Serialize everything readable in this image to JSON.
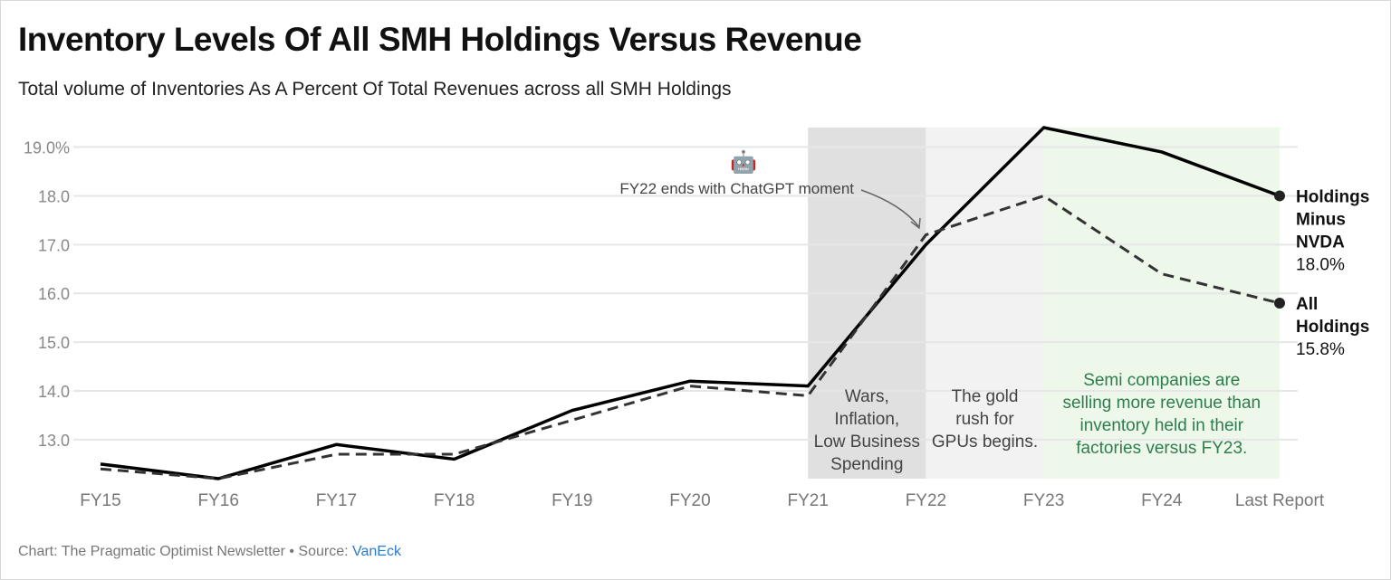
{
  "title": "Inventory Levels Of All SMH Holdings Versus Revenue",
  "subtitle": "Total volume of Inventories As A Percent Of Total Revenues across all SMH Holdings",
  "footer": {
    "prefix": "Chart: The Pragmatic Optimist Newsletter • Source: ",
    "source": "VanEck"
  },
  "chart_data": {
    "type": "line",
    "categories": [
      "FY15",
      "FY16",
      "FY17",
      "FY18",
      "FY19",
      "FY20",
      "FY21",
      "FY22",
      "FY23",
      "FY24",
      "Last Report"
    ],
    "ylim": [
      12.2,
      19.4
    ],
    "yticks": [
      13,
      14,
      15,
      16,
      17,
      18,
      19
    ],
    "ytick_labels": [
      "13.0",
      "14.0",
      "15.0",
      "16.0",
      "17.0",
      "18.0",
      "19.0%"
    ],
    "grid": true,
    "series": [
      {
        "name": "Holdings Minus NVDA",
        "style": "solid",
        "color": "#000000",
        "end_label": [
          "Holdings",
          "Minus",
          "NVDA"
        ],
        "end_value": "18.0%",
        "values": [
          12.5,
          12.2,
          12.9,
          12.6,
          13.6,
          14.2,
          14.1,
          17.0,
          19.4,
          18.9,
          18.0
        ]
      },
      {
        "name": "All Holdings",
        "style": "dashed",
        "color": "#333333",
        "end_label": [
          "All",
          "Holdings"
        ],
        "end_value": "15.8%",
        "values": [
          12.4,
          12.2,
          12.7,
          12.7,
          13.4,
          14.1,
          13.9,
          17.2,
          18.0,
          16.4,
          15.8
        ]
      }
    ],
    "bands": [
      {
        "from": "FY21",
        "to": "FY22",
        "color": "#e0e0e0",
        "text": [
          "Wars,",
          "Inflation,",
          "Low Business",
          "Spending"
        ],
        "text_color": "#444444"
      },
      {
        "from": "FY22",
        "to": "FY23",
        "color": "#f2f2f2",
        "text": [
          "The gold",
          "rush for",
          "GPUs begins."
        ],
        "text_color": "#444444"
      },
      {
        "from": "FY23",
        "to": "Last Report",
        "color": "#edf7ea",
        "text": [
          "Semi companies are",
          "selling more revenue than",
          "inventory held in their",
          "factories versus FY23."
        ],
        "text_color": "#2e7d4f"
      }
    ],
    "annotation": {
      "icon": "robot-icon",
      "emoji": "🤖",
      "text": "FY22 ends with ChatGPT moment",
      "points_to": "FY22"
    }
  }
}
